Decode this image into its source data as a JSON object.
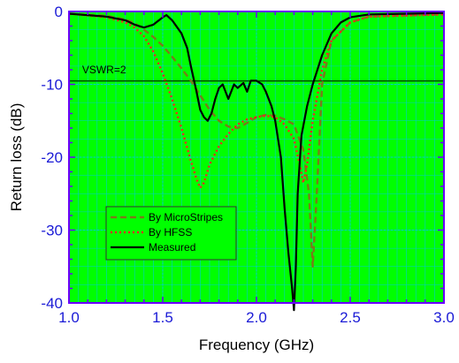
{
  "chart_data": {
    "type": "line",
    "xlabel": "Frequency (GHz)",
    "ylabel": "Return loss (dB)",
    "xlim": [
      1.0,
      3.0
    ],
    "ylim": [
      -40,
      0
    ],
    "x_ticks": [
      "1.0",
      "1.5",
      "2.0",
      "2.5",
      "3.0"
    ],
    "y_ticks": [
      "0",
      "-10",
      "-20",
      "-30",
      "-40"
    ],
    "grid": true,
    "background_color": "#00ff00",
    "grid_color": "#00cccc",
    "axis_color": "#6a00ff",
    "tick_label_color": "#1a1ad6",
    "legend_position": "lower-left",
    "annotations": [
      {
        "text": "VSWR=2",
        "x": 1.07,
        "y": -8.5
      }
    ],
    "reference_line": {
      "y": -9.54
    },
    "series": [
      {
        "name": "By MicroStripes",
        "color": "#7a7a1a",
        "dash": "dashed",
        "x": [
          1.0,
          1.2,
          1.3,
          1.35,
          1.4,
          1.45,
          1.5,
          1.55,
          1.6,
          1.65,
          1.7,
          1.75,
          1.8,
          1.85,
          1.9,
          1.95,
          2.0,
          2.05,
          2.1,
          2.15,
          2.2,
          2.25,
          2.28,
          2.3,
          2.32,
          2.35,
          2.4,
          2.5,
          2.6,
          3.0
        ],
        "values": [
          -0.3,
          -0.6,
          -1.1,
          -1.6,
          -2.5,
          -3.5,
          -4.7,
          -6.2,
          -7.8,
          -9.5,
          -11.5,
          -13.5,
          -15.0,
          -15.8,
          -16.0,
          -15.3,
          -14.5,
          -14.2,
          -14.3,
          -14.8,
          -15.5,
          -19.0,
          -25.0,
          -35.0,
          -26.0,
          -10.0,
          -4.0,
          -1.5,
          -0.7,
          -0.4
        ]
      },
      {
        "name": "By HFSS",
        "color": "#ff2020",
        "dash": "dotted",
        "x": [
          1.0,
          1.2,
          1.3,
          1.35,
          1.4,
          1.45,
          1.5,
          1.55,
          1.6,
          1.65,
          1.68,
          1.7,
          1.72,
          1.75,
          1.8,
          1.85,
          1.9,
          1.95,
          2.0,
          2.05,
          2.1,
          2.15,
          2.2,
          2.23,
          2.25,
          2.27,
          2.3,
          2.35,
          2.4,
          2.5,
          2.6,
          3.0
        ],
        "values": [
          -0.3,
          -0.8,
          -1.5,
          -2.2,
          -3.4,
          -5.5,
          -8.5,
          -12.0,
          -16.0,
          -20.5,
          -23.0,
          -24.2,
          -23.5,
          -21.0,
          -18.5,
          -16.8,
          -15.5,
          -14.8,
          -14.5,
          -14.3,
          -14.5,
          -15.5,
          -17.5,
          -21.0,
          -23.5,
          -21.0,
          -15.0,
          -8.0,
          -4.0,
          -1.5,
          -0.7,
          -0.4
        ]
      },
      {
        "name": "Measured",
        "color": "#000000",
        "dash": "solid",
        "x": [
          1.0,
          1.2,
          1.3,
          1.35,
          1.4,
          1.45,
          1.5,
          1.52,
          1.55,
          1.6,
          1.63,
          1.65,
          1.68,
          1.7,
          1.72,
          1.74,
          1.76,
          1.78,
          1.8,
          1.82,
          1.85,
          1.88,
          1.9,
          1.93,
          1.95,
          1.97,
          2.0,
          2.03,
          2.05,
          2.08,
          2.1,
          2.13,
          2.15,
          2.17,
          2.19,
          2.2,
          2.21,
          2.22,
          2.24,
          2.27,
          2.3,
          2.35,
          2.4,
          2.45,
          2.5,
          2.6,
          2.8,
          3.0
        ],
        "values": [
          -0.3,
          -0.7,
          -1.2,
          -1.8,
          -2.2,
          -1.8,
          -0.8,
          -0.5,
          -1.2,
          -3.0,
          -5.0,
          -7.5,
          -11.0,
          -13.5,
          -14.5,
          -15.0,
          -14.0,
          -12.0,
          -10.5,
          -10.0,
          -12.0,
          -10.0,
          -10.5,
          -9.8,
          -11.0,
          -9.5,
          -9.5,
          -10.0,
          -11.0,
          -13.0,
          -15.0,
          -20.0,
          -27.0,
          -33.0,
          -38.0,
          -41.0,
          -35.0,
          -25.0,
          -17.0,
          -13.0,
          -10.0,
          -6.0,
          -3.0,
          -1.5,
          -0.8,
          -0.4,
          -0.3,
          -0.2
        ]
      }
    ]
  }
}
